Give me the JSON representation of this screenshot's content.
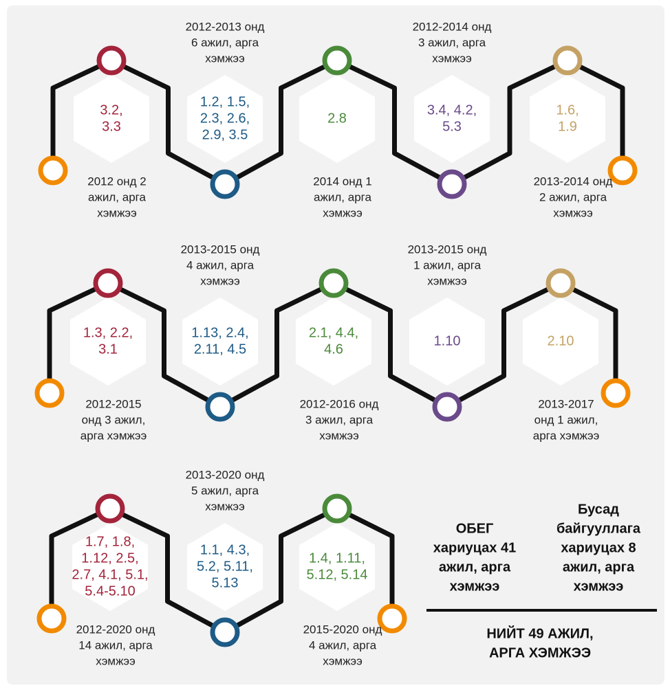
{
  "rows": [
    {
      "items": [
        {
          "codes": [
            "3.2,",
            "3.3"
          ],
          "label": [
            "2012 онд 2",
            "ажил, арга",
            "хэмжээ"
          ]
        },
        {
          "codes": [
            "1.2, 1.5,",
            "2.3, 2.6,",
            "2.9, 3.5"
          ],
          "label": [
            "2012-2013 онд",
            "6 ажил, арга",
            "хэмжээ"
          ]
        },
        {
          "codes": [
            "2.8"
          ],
          "label": [
            "2014 онд 1",
            "ажил, арга",
            "хэмжээ"
          ]
        },
        {
          "codes": [
            "3.4, 4.2,",
            "5.3"
          ],
          "label": [
            "2012-2014 онд",
            "3 ажил, арга",
            "хэмжээ"
          ]
        },
        {
          "codes": [
            "1.6,",
            "1.9"
          ],
          "label": [
            "2013-2014 онд",
            "2 ажил, арга",
            "хэмжээ"
          ]
        }
      ]
    },
    {
      "items": [
        {
          "codes": [
            "1.3, 2.2,",
            "3.1"
          ],
          "label": [
            "2012-2015",
            "онд 3 ажил,",
            "арга хэмжээ"
          ]
        },
        {
          "codes": [
            "1.13, 2.4,",
            "2.11, 4.5"
          ],
          "label": [
            "2013-2015 онд",
            "4 ажил, арга",
            "хэмжээ"
          ]
        },
        {
          "codes": [
            "2.1, 4.4,",
            "4.6"
          ],
          "label": [
            "2012-2016 онд",
            "3 ажил, арга",
            "хэмжээ"
          ]
        },
        {
          "codes": [
            "1.10"
          ],
          "label": [
            "2013-2015 онд",
            "1 ажил, арга",
            "хэмжээ"
          ]
        },
        {
          "codes": [
            "2.10"
          ],
          "label": [
            "2013-2017",
            "онд 1 ажил,",
            "арга хэмжээ"
          ]
        }
      ]
    },
    {
      "items": [
        {
          "codes": [
            "1.7, 1.8,",
            "1.12, 2.5,",
            "2.7, 4.1, 5.1,",
            "5.4-5.10"
          ],
          "label": [
            "2012-2020 онд",
            "14 ажил, арга",
            "хэмжээ"
          ]
        },
        {
          "codes": [
            "1.1, 4.3,",
            "5.2, 5.11,",
            "5.13"
          ],
          "label": [
            "2013-2020 онд",
            "5 ажил, арга",
            "хэмжээ"
          ]
        },
        {
          "codes": [
            "1.4, 1.11,",
            "5.12, 5.14"
          ],
          "label": [
            "2015-2020 онд",
            "4 ажил, арга",
            "хэмжээ"
          ]
        }
      ]
    }
  ],
  "summary": {
    "left": [
      "ОБЕГ",
      "хариуцах 41",
      "ажил, арга",
      "хэмжээ"
    ],
    "right": [
      "Бусад",
      "байгууллага",
      "хариуцах 8",
      "ажил, арга",
      "хэмжээ"
    ],
    "total": [
      "НИЙТ 49 АЖИЛ,",
      "АРГА ХЭМЖЭЭ"
    ]
  }
}
